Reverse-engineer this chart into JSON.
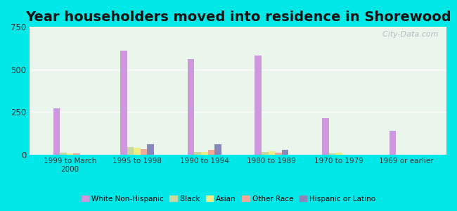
{
  "title": "Year householders moved into residence in Shorewood",
  "categories": [
    "1999 to March\n2000",
    "1995 to 1998",
    "1990 to 1994",
    "1980 to 1989",
    "1970 to 1979",
    "1969 or earlier"
  ],
  "white_values": [
    270,
    610,
    560,
    580,
    215,
    140
  ],
  "black_values": [
    10,
    45,
    15,
    15,
    8,
    0
  ],
  "asian_values": [
    5,
    40,
    15,
    18,
    10,
    0
  ],
  "other_values": [
    5,
    30,
    25,
    12,
    0,
    0
  ],
  "hispanic_values": [
    0,
    60,
    60,
    25,
    0,
    0
  ],
  "colors": {
    "White Non-Hispanic": "#cc99dd",
    "Black": "#c8d8a0",
    "Asian": "#eeee88",
    "Other Race": "#f0a898",
    "Hispanic or Latino": "#8888bb"
  },
  "ylim": [
    0,
    750
  ],
  "yticks": [
    0,
    250,
    500,
    750
  ],
  "outer_bg": "#00e8e8",
  "plot_bg": "#eaf5ec",
  "title_fontsize": 14,
  "watermark": "  City-Data.com"
}
